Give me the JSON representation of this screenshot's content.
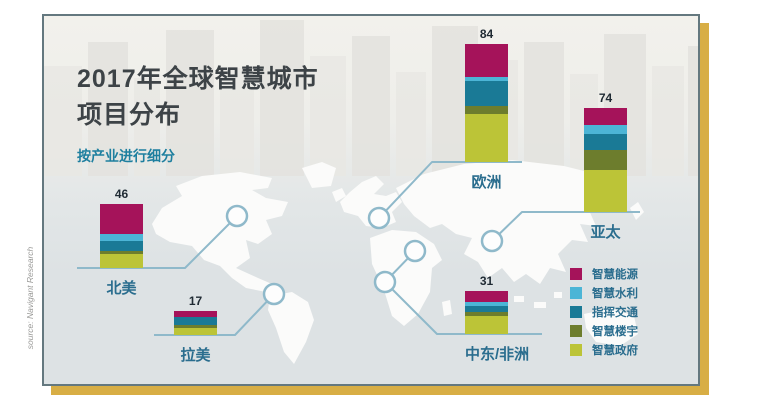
{
  "header": {
    "title_line1": "2017年全球智慧城市",
    "title_line2": "项目分布",
    "subtitle": "按产业进行细分"
  },
  "source_note": "source: Navigant Research",
  "colors": {
    "energy": "#a5135a",
    "water": "#4cb5d6",
    "traffic": "#1a7a96",
    "building": "#6d7d2d",
    "government": "#bcc437",
    "gold_frame": "#d8ae45",
    "connector": "#8fb9ca",
    "label_blue": "#2a6d8e",
    "title_gray": "#3d4347",
    "subtitle_teal": "#1e7f9f"
  },
  "chart_data": {
    "type": "bar",
    "stacked": true,
    "title": "2017年全球智慧城市项目分布",
    "subtitle": "按产业进行细分",
    "categories": [
      "北美",
      "拉美",
      "欧洲",
      "中东/非洲",
      "亚太"
    ],
    "totals": [
      46,
      17,
      84,
      31,
      74
    ],
    "series": [
      {
        "name": "智慧能源",
        "color": "#a5135a",
        "values": [
          22,
          4,
          23,
          8,
          12
        ]
      },
      {
        "name": "智慧水利",
        "color": "#4cb5d6",
        "values": [
          5,
          0,
          3,
          3,
          6
        ]
      },
      {
        "name": "指挥交通",
        "color": "#1a7a96",
        "values": [
          7,
          6,
          18,
          4,
          12
        ]
      },
      {
        "name": "智慧楼宇",
        "color": "#6d7d2d",
        "values": [
          2,
          2,
          6,
          3,
          14
        ]
      },
      {
        "name": "智慧政府",
        "color": "#bcc437",
        "values": [
          10,
          5,
          34,
          13,
          30
        ]
      }
    ],
    "legend_position": "bottom-right"
  }
}
